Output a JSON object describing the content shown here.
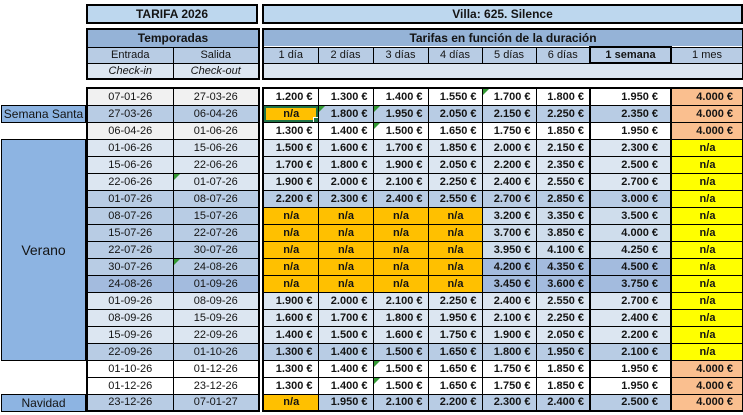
{
  "titles": {
    "left": "TARIFA 2026",
    "right": "Villa: 625. Silence"
  },
  "left_header": {
    "group": "Temporadas",
    "col_in": "Entrada",
    "col_out": "Salida",
    "sub_in": "Check-in",
    "sub_out": "Check-out"
  },
  "right_header": {
    "group": "Tarifas en función de la duración",
    "durations": [
      "1 día",
      "2 días",
      "3 días",
      "4 días",
      "5 días",
      "6 días",
      "1 semana",
      "1 mes"
    ]
  },
  "seasons": {
    "semana_santa": "Semana Santa",
    "verano": "Verano",
    "navidad": "Navidad"
  },
  "colors": {
    "title_bg": "#BDD7EE",
    "group_bg": "#95B3D7",
    "cols_bg": "#B8CCE4",
    "sub_bg": "#DCE6F1",
    "season_bg": "#8DB4E2",
    "na_orange": "#FFC000",
    "na_yellow": "#FFFF00",
    "month_salmon": "#FABF8F",
    "shade_white": "#FFFFFF",
    "shade_gray": "#F1F1F1",
    "shade_light": "#DCE6F1",
    "shade_midlight": "#CFDDEC",
    "shade_medium": "#B8CCE4",
    "shade_dark": "#A3BBDE",
    "select_green": "#217346",
    "flag_green": "#339933"
  },
  "rows": [
    {
      "entrada": "07-01-26",
      "salida": "27-03-26",
      "date_shade": "g",
      "price_shade": "w",
      "prices": [
        "1.200 €",
        "1.300 €",
        "1.400 €",
        "1.550 €",
        "1.700 €",
        "1.800 €",
        "1.950 €",
        "4.000 €"
      ],
      "price_triangles": [
        4
      ],
      "salida_triangle": false,
      "selected_col": -1
    },
    {
      "entrada": "27-03-26",
      "salida": "06-04-26",
      "date_shade": "m",
      "price_shade": "m",
      "prices": [
        "n/a",
        "1.800 €",
        "1.950 €",
        "2.050 €",
        "2.150 €",
        "2.250 €",
        "2.350 €",
        "4.000 €"
      ],
      "price_triangles": [
        1,
        2
      ],
      "salida_triangle": false,
      "selected_col": 0
    },
    {
      "entrada": "06-04-26",
      "salida": "01-06-26",
      "date_shade": "g",
      "price_shade": "w",
      "prices": [
        "1.300 €",
        "1.400 €",
        "1.500 €",
        "1.650 €",
        "1.750 €",
        "1.850 €",
        "1.950 €",
        "4.000 €"
      ],
      "price_triangles": [
        2
      ],
      "salida_triangle": false,
      "selected_col": -1
    },
    {
      "entrada": "01-06-26",
      "salida": "15-06-26",
      "date_shade": "l",
      "price_shade": "l",
      "prices": [
        "1.500 €",
        "1.600 €",
        "1.700 €",
        "1.850 €",
        "2.000 €",
        "2.150 €",
        "2.300 €",
        "n/a"
      ],
      "price_triangles": [],
      "salida_triangle": false,
      "selected_col": -1
    },
    {
      "entrada": "15-06-26",
      "salida": "22-06-26",
      "date_shade": "l",
      "price_shade": "l",
      "prices": [
        "1.700 €",
        "1.800 €",
        "1.900 €",
        "2.050 €",
        "2.200 €",
        "2.350 €",
        "2.500 €",
        "n/a"
      ],
      "price_triangles": [],
      "salida_triangle": false,
      "selected_col": -1
    },
    {
      "entrada": "22-06-26",
      "salida": "01-07-26",
      "date_shade": "l",
      "price_shade": "l",
      "prices": [
        "1.900 €",
        "2.000 €",
        "2.100 €",
        "2.250 €",
        "2.400 €",
        "2.550 €",
        "2.700 €",
        "n/a"
      ],
      "price_triangles": [],
      "salida_triangle": true,
      "selected_col": -1
    },
    {
      "entrada": "01-07-26",
      "salida": "08-07-26",
      "date_shade": "m",
      "price_shade": "m",
      "prices": [
        "2.200 €",
        "2.300 €",
        "2.400 €",
        "2.550 €",
        "2.700 €",
        "2.850 €",
        "3.000 €",
        "n/a"
      ],
      "price_triangles": [],
      "salida_triangle": false,
      "selected_col": -1
    },
    {
      "entrada": "08-07-26",
      "salida": "15-07-26",
      "date_shade": "m",
      "price_shade": "ml",
      "prices": [
        "n/a",
        "n/a",
        "n/a",
        "n/a",
        "3.200 €",
        "3.350 €",
        "3.500 €",
        "n/a"
      ],
      "price_triangles": [],
      "salida_triangle": false,
      "selected_col": -1
    },
    {
      "entrada": "15-07-26",
      "salida": "22-07-26",
      "date_shade": "m",
      "price_shade": "ml",
      "prices": [
        "n/a",
        "n/a",
        "n/a",
        "n/a",
        "3.700 €",
        "3.850 €",
        "4.000 €",
        "n/a"
      ],
      "price_triangles": [],
      "salida_triangle": false,
      "selected_col": -1
    },
    {
      "entrada": "22-07-26",
      "salida": "30-07-26",
      "date_shade": "m",
      "price_shade": "ml",
      "prices": [
        "n/a",
        "n/a",
        "n/a",
        "n/a",
        "3.950 €",
        "4.100 €",
        "4.250 €",
        "n/a"
      ],
      "price_triangles": [],
      "salida_triangle": false,
      "selected_col": -1
    },
    {
      "entrada": "30-07-26",
      "salida": "24-08-26",
      "date_shade": "m",
      "price_shade": "d",
      "prices": [
        "n/a",
        "n/a",
        "n/a",
        "n/a",
        "4.200 €",
        "4.350 €",
        "4.500 €",
        "n/a"
      ],
      "price_triangles": [],
      "salida_triangle": true,
      "selected_col": -1
    },
    {
      "entrada": "24-08-26",
      "salida": "01-09-26",
      "date_shade": "d",
      "price_shade": "d",
      "prices": [
        "n/a",
        "n/a",
        "n/a",
        "n/a",
        "3.450 €",
        "3.600 €",
        "3.750 €",
        "n/a"
      ],
      "price_triangles": [],
      "salida_triangle": false,
      "selected_col": -1
    },
    {
      "entrada": "01-09-26",
      "salida": "08-09-26",
      "date_shade": "l",
      "price_shade": "l",
      "prices": [
        "1.900 €",
        "2.000 €",
        "2.100 €",
        "2.250 €",
        "2.400 €",
        "2.550 €",
        "2.700 €",
        "n/a"
      ],
      "price_triangles": [],
      "salida_triangle": false,
      "selected_col": -1
    },
    {
      "entrada": "08-09-26",
      "salida": "15-09-26",
      "date_shade": "l",
      "price_shade": "l",
      "prices": [
        "1.600 €",
        "1.700 €",
        "1.800 €",
        "1.950 €",
        "2.100 €",
        "2.250 €",
        "2.400 €",
        "n/a"
      ],
      "price_triangles": [],
      "salida_triangle": false,
      "selected_col": -1
    },
    {
      "entrada": "15-09-26",
      "salida": "22-09-26",
      "date_shade": "l",
      "price_shade": "l",
      "prices": [
        "1.400 €",
        "1.500 €",
        "1.600 €",
        "1.750 €",
        "1.900 €",
        "2.050 €",
        "2.200 €",
        "n/a"
      ],
      "price_triangles": [],
      "salida_triangle": false,
      "selected_col": -1
    },
    {
      "entrada": "22-09-26",
      "salida": "01-10-26",
      "date_shade": "m",
      "price_shade": "m",
      "prices": [
        "1.300 €",
        "1.400 €",
        "1.500 €",
        "1.650 €",
        "1.800 €",
        "1.950 €",
        "2.100 €",
        "n/a"
      ],
      "price_triangles": [],
      "salida_triangle": false,
      "selected_col": -1
    },
    {
      "entrada": "01-10-26",
      "salida": "01-12-26",
      "date_shade": "w",
      "price_shade": "w",
      "prices": [
        "1.300 €",
        "1.400 €",
        "1.500 €",
        "1.650 €",
        "1.750 €",
        "1.850 €",
        "1.950 €",
        "4.000 €"
      ],
      "price_triangles": [
        2
      ],
      "salida_triangle": false,
      "selected_col": -1
    },
    {
      "entrada": "01-12-26",
      "salida": "23-12-26",
      "date_shade": "w",
      "price_shade": "w",
      "prices": [
        "1.300 €",
        "1.400 €",
        "1.500 €",
        "1.650 €",
        "1.750 €",
        "1.850 €",
        "1.950 €",
        "4.000 €"
      ],
      "price_triangles": [
        2
      ],
      "salida_triangle": false,
      "selected_col": -1
    },
    {
      "entrada": "23-12-26",
      "salida": "07-01-27",
      "date_shade": "m",
      "price_shade": "m",
      "prices": [
        "n/a",
        "1.950 €",
        "2.100 €",
        "2.200 €",
        "2.300 €",
        "2.400 €",
        "2.500 €",
        "4.000 €"
      ],
      "price_triangles": [],
      "salida_triangle": false,
      "selected_col": -1
    }
  ]
}
